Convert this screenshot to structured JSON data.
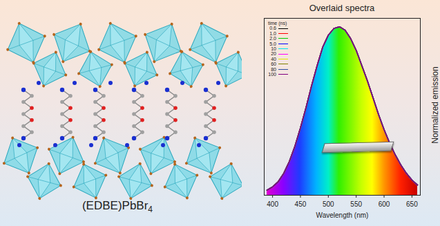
{
  "panel_label": "(EDBE)PbBr4",
  "chart_data": {
    "type": "line",
    "title": "Overlaid spectra",
    "x_label": "Wavelength (nm)",
    "y_label": "Normalized emission",
    "legend_title": "time (ns)",
    "x": [
      390,
      400,
      410,
      420,
      430,
      440,
      450,
      460,
      470,
      480,
      490,
      500,
      510,
      520,
      530,
      540,
      550,
      560,
      570,
      580,
      590,
      600,
      610,
      620,
      630,
      640,
      650,
      660
    ],
    "series": [
      {
        "name": "0.6",
        "color": "#000000",
        "values": [
          0.03,
          0.05,
          0.08,
          0.13,
          0.2,
          0.29,
          0.4,
          0.52,
          0.65,
          0.77,
          0.88,
          0.95,
          0.99,
          1.0,
          0.98,
          0.93,
          0.86,
          0.77,
          0.68,
          0.58,
          0.48,
          0.39,
          0.31,
          0.24,
          0.18,
          0.13,
          0.09,
          0.06
        ]
      },
      {
        "name": "1.0",
        "color": "#ff0000",
        "values": [
          0.03,
          0.05,
          0.08,
          0.13,
          0.2,
          0.29,
          0.4,
          0.52,
          0.65,
          0.77,
          0.88,
          0.95,
          0.99,
          1.0,
          0.98,
          0.93,
          0.86,
          0.77,
          0.68,
          0.58,
          0.48,
          0.39,
          0.31,
          0.24,
          0.18,
          0.13,
          0.09,
          0.06
        ]
      },
      {
        "name": "2.0",
        "color": "#00cc00",
        "values": [
          0.03,
          0.05,
          0.08,
          0.13,
          0.2,
          0.29,
          0.4,
          0.52,
          0.65,
          0.77,
          0.88,
          0.95,
          0.99,
          1.0,
          0.98,
          0.93,
          0.86,
          0.77,
          0.68,
          0.58,
          0.48,
          0.39,
          0.31,
          0.24,
          0.18,
          0.13,
          0.09,
          0.06
        ]
      },
      {
        "name": "5.0",
        "color": "#0000ff",
        "values": [
          0.03,
          0.05,
          0.08,
          0.13,
          0.2,
          0.29,
          0.4,
          0.52,
          0.65,
          0.77,
          0.88,
          0.95,
          0.99,
          1.0,
          0.98,
          0.93,
          0.86,
          0.77,
          0.68,
          0.58,
          0.48,
          0.39,
          0.31,
          0.24,
          0.18,
          0.13,
          0.09,
          0.06
        ]
      },
      {
        "name": "10",
        "color": "#00e5ee",
        "values": [
          0.03,
          0.05,
          0.08,
          0.13,
          0.2,
          0.29,
          0.4,
          0.52,
          0.65,
          0.77,
          0.88,
          0.95,
          0.99,
          1.0,
          0.98,
          0.93,
          0.86,
          0.77,
          0.68,
          0.58,
          0.48,
          0.39,
          0.31,
          0.24,
          0.18,
          0.13,
          0.09,
          0.06
        ]
      },
      {
        "name": "20",
        "color": "#ff00ff",
        "values": [
          0.03,
          0.05,
          0.08,
          0.13,
          0.2,
          0.29,
          0.4,
          0.52,
          0.65,
          0.77,
          0.88,
          0.95,
          0.99,
          1.0,
          0.98,
          0.93,
          0.86,
          0.77,
          0.68,
          0.58,
          0.48,
          0.39,
          0.31,
          0.24,
          0.18,
          0.13,
          0.09,
          0.06
        ]
      },
      {
        "name": "40",
        "color": "#e6e600",
        "values": [
          0.03,
          0.05,
          0.08,
          0.13,
          0.2,
          0.29,
          0.4,
          0.52,
          0.65,
          0.77,
          0.88,
          0.95,
          0.99,
          1.0,
          0.98,
          0.93,
          0.86,
          0.77,
          0.68,
          0.58,
          0.48,
          0.39,
          0.31,
          0.24,
          0.18,
          0.13,
          0.09,
          0.06
        ]
      },
      {
        "name": "60",
        "color": "#808000",
        "values": [
          0.03,
          0.05,
          0.08,
          0.13,
          0.2,
          0.29,
          0.4,
          0.52,
          0.65,
          0.77,
          0.88,
          0.95,
          0.99,
          1.0,
          0.98,
          0.93,
          0.86,
          0.77,
          0.68,
          0.58,
          0.48,
          0.39,
          0.31,
          0.24,
          0.18,
          0.13,
          0.09,
          0.06
        ]
      },
      {
        "name": "80",
        "color": "#3050a0",
        "values": [
          0.03,
          0.05,
          0.08,
          0.13,
          0.2,
          0.29,
          0.4,
          0.52,
          0.65,
          0.77,
          0.88,
          0.95,
          0.99,
          1.0,
          0.98,
          0.93,
          0.86,
          0.77,
          0.68,
          0.58,
          0.48,
          0.39,
          0.31,
          0.24,
          0.18,
          0.13,
          0.09,
          0.06
        ]
      },
      {
        "name": "100",
        "color": "#800080",
        "values": [
          0.03,
          0.05,
          0.08,
          0.13,
          0.2,
          0.29,
          0.4,
          0.52,
          0.65,
          0.77,
          0.88,
          0.95,
          0.99,
          1.0,
          0.98,
          0.93,
          0.86,
          0.77,
          0.68,
          0.58,
          0.48,
          0.39,
          0.31,
          0.24,
          0.18,
          0.13,
          0.09,
          0.06
        ]
      }
    ],
    "xlim": [
      385,
      665
    ],
    "ylim": [
      0,
      1.05
    ],
    "xticks": [
      400,
      450,
      500,
      550,
      600,
      650
    ],
    "yticks": [],
    "tick_labels": "x",
    "legend": "top-left"
  }
}
